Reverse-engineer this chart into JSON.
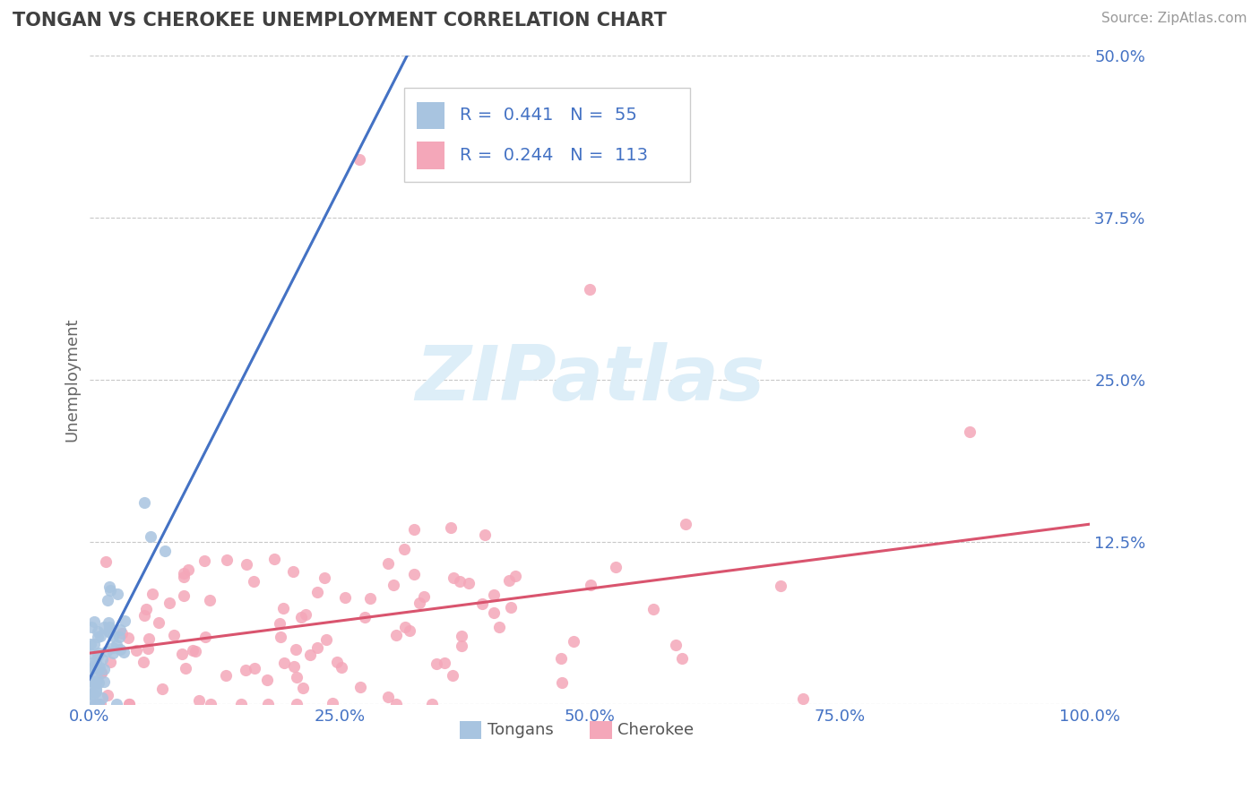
{
  "title": "TONGAN VS CHEROKEE UNEMPLOYMENT CORRELATION CHART",
  "source": "Source: ZipAtlas.com",
  "ylabel": "Unemployment",
  "xlim": [
    0,
    1.0
  ],
  "ylim": [
    0,
    0.5
  ],
  "yticks": [
    0,
    0.125,
    0.25,
    0.375,
    0.5
  ],
  "ytick_labels": [
    "",
    "12.5%",
    "25.0%",
    "37.5%",
    "50.0%"
  ],
  "xticks": [
    0,
    0.25,
    0.5,
    0.75,
    1.0
  ],
  "xtick_labels": [
    "0.0%",
    "25.0%",
    "50.0%",
    "75.0%",
    "100.0%"
  ],
  "tongan_color": "#a8c4e0",
  "cherokee_color": "#f4a7b9",
  "tongan_line_color": "#4472c4",
  "cherokee_line_color": "#d9546e",
  "axis_label_color": "#4472c4",
  "title_color": "#404040",
  "legend_R_tongan": "0.441",
  "legend_N_tongan": "55",
  "legend_R_cherokee": "0.244",
  "legend_N_cherokee": "113",
  "background_color": "#ffffff",
  "grid_color": "#c8c8c8",
  "watermark_color": "#ddeef8"
}
